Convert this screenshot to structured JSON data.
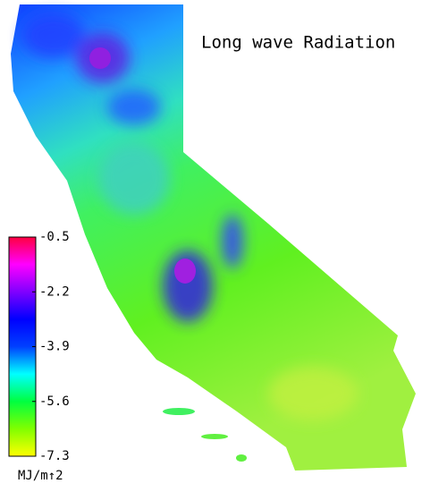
{
  "title": "Long wave Radiation",
  "legend": {
    "range": [
      -7.3,
      -0.5
    ],
    "ticks": [
      -0.5,
      -2.2,
      -3.9,
      -5.6,
      -7.3
    ],
    "unit": "MJ/m↑2",
    "colors": [
      "#ffff00",
      "#80ff00",
      "#00ff40",
      "#00ffff",
      "#0040ff",
      "#0000ff",
      "#8000ff",
      "#ff00ff",
      "#ff0040"
    ]
  }
}
